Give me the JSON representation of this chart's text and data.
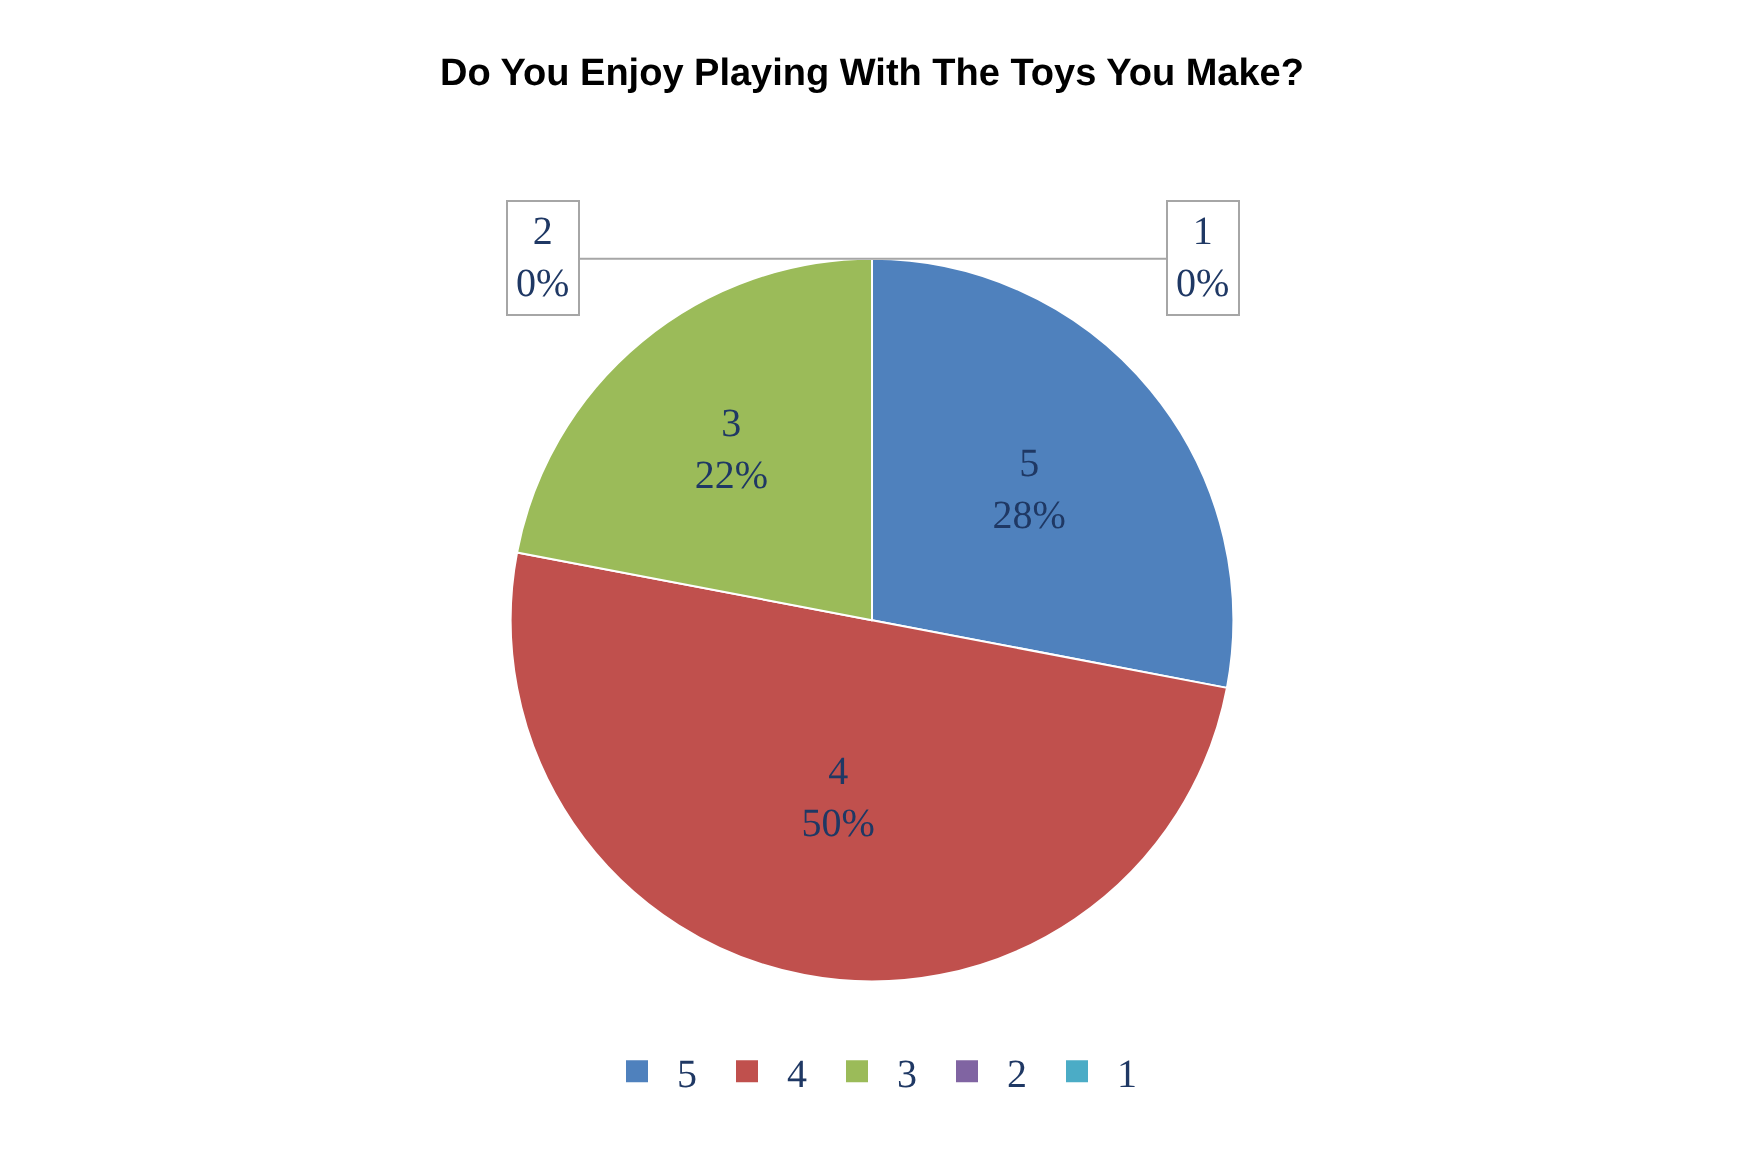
{
  "chart_data": {
    "type": "pie",
    "title": "Do You Enjoy Playing With The Toys You Make?",
    "categories": [
      "5",
      "4",
      "3",
      "2",
      "1"
    ],
    "values": [
      28,
      50,
      22,
      0,
      0
    ],
    "colors": [
      "#4f81bd",
      "#c0504d",
      "#9bbb59",
      "#8064a2",
      "#4bacc6"
    ],
    "value_labels": [
      "28%",
      "50%",
      "22%",
      "0%",
      "0%"
    ],
    "legend": "bottom"
  }
}
